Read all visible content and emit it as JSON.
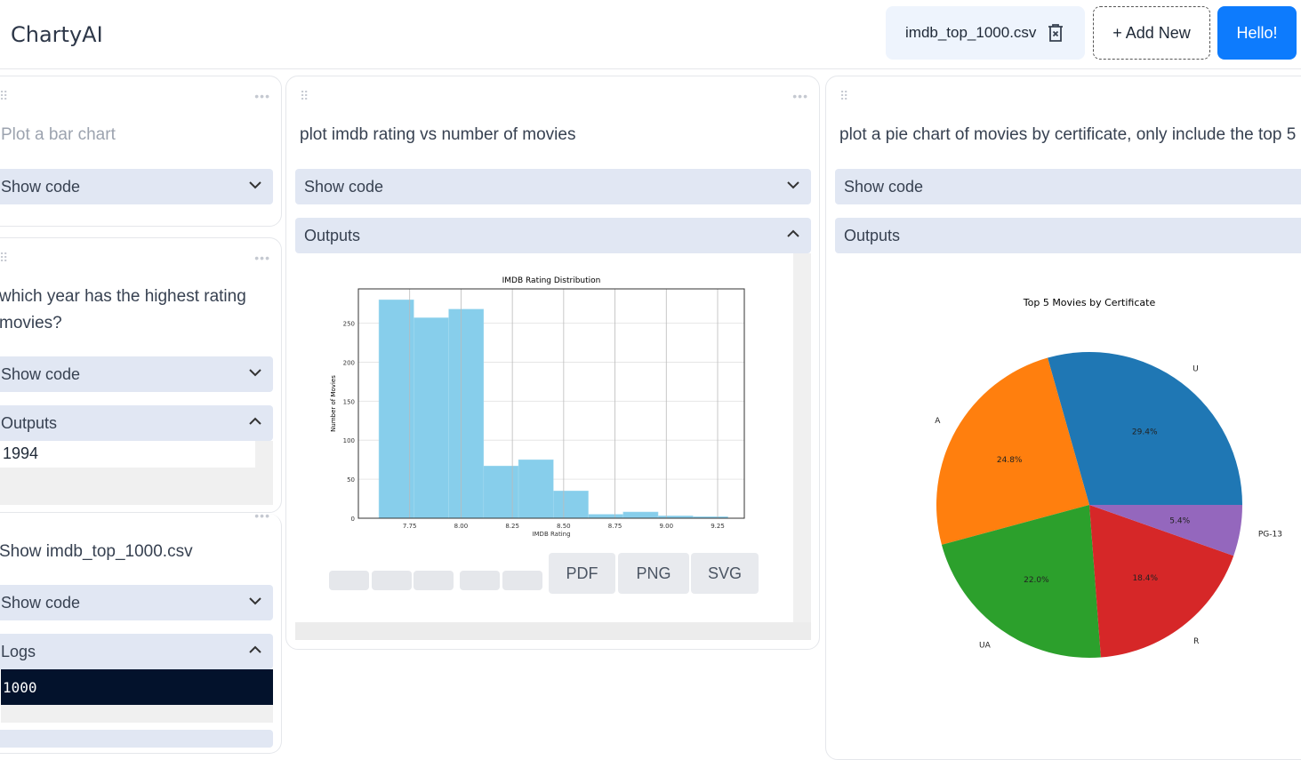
{
  "header": {
    "logo": "ChartyAI",
    "file_name": "imdb_top_1000.csv",
    "add_new": "+ Add New",
    "hello": "Hello!"
  },
  "cards": {
    "c1": {
      "prompt": "Plot a bar chart",
      "show_code": "Show code"
    },
    "c2": {
      "prompt_line1": "which year has the highest rating",
      "prompt_line2": "movies?",
      "show_code": "Show code",
      "outputs": "Outputs",
      "output_value": "1994"
    },
    "c3": {
      "prompt": "Show imdb_top_1000.csv",
      "show_code": "Show code",
      "logs": "Logs",
      "log_value": "1000"
    },
    "c4": {
      "prompt": "plot imdb rating vs number of movies",
      "show_code": "Show code",
      "outputs": "Outputs",
      "downloads": [
        "PDF",
        "PNG",
        "SVG"
      ]
    },
    "c5": {
      "prompt": "plot a pie chart of movies by certificate, only include the top 5",
      "show_code": "Show code",
      "outputs": "Outputs"
    }
  },
  "chart_data": [
    {
      "type": "bar",
      "title": "IMDB Rating Distribution",
      "xlabel": "IMDB Rating",
      "ylabel": "Number of Movies",
      "bin_edges": [
        7.6,
        7.77,
        7.94,
        8.11,
        8.28,
        8.45,
        8.62,
        8.79,
        8.96,
        9.13,
        9.3
      ],
      "values": [
        280,
        257,
        268,
        67,
        75,
        35,
        5,
        8,
        3,
        2
      ],
      "xticks": [
        "7.75",
        "8.00",
        "8.25",
        "8.50",
        "8.75",
        "9.00",
        "9.25"
      ],
      "yticks": [
        "0",
        "50",
        "100",
        "150",
        "200",
        "250"
      ],
      "xlim": [
        7.5,
        9.38
      ],
      "ylim": [
        0,
        294
      ],
      "grid": true,
      "color": "#87ceeb"
    },
    {
      "type": "pie",
      "title": "Top 5 Movies by Certificate",
      "labels": [
        "U",
        "A",
        "UA",
        "R",
        "PG-13"
      ],
      "values": [
        29.4,
        24.8,
        22.0,
        18.4,
        5.4
      ],
      "pct_labels": [
        "29.4%",
        "24.8%",
        "22.0%",
        "18.4%",
        "5.4%"
      ],
      "colors": [
        "#1f77b4",
        "#ff7f0e",
        "#2ca02c",
        "#d62728",
        "#9467bd"
      ]
    }
  ]
}
